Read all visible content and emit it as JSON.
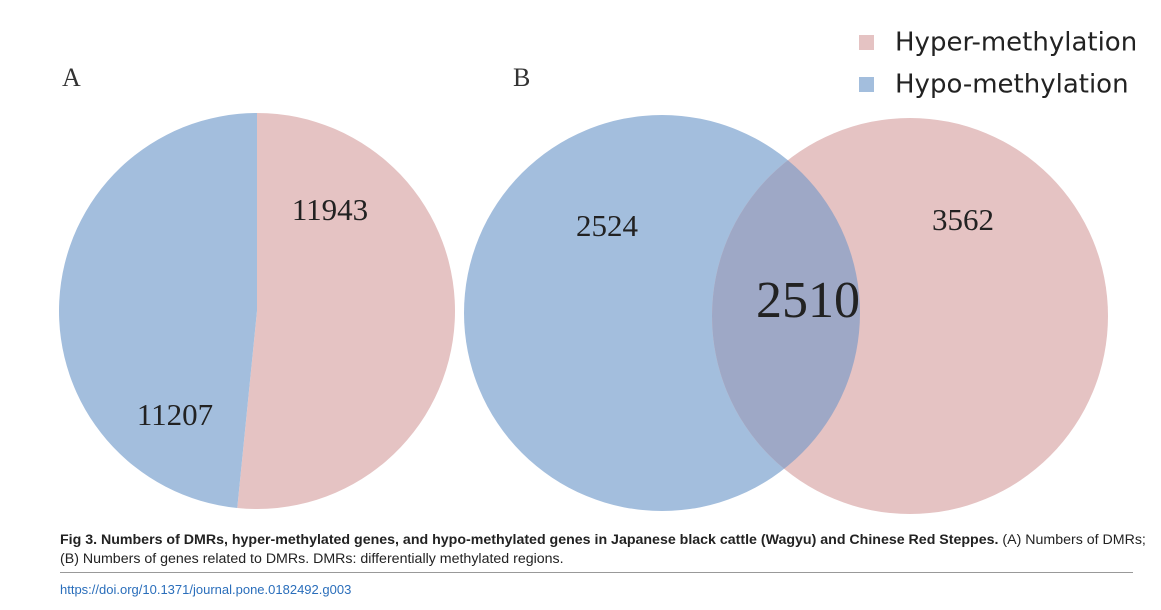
{
  "chart_data": [
    {
      "type": "pie",
      "panel": "A",
      "values": [
        11943,
        11207
      ],
      "colors": [
        "#e5c3c3",
        "#a3bedd"
      ]
    },
    {
      "type": "venn",
      "panel": "B",
      "series": [
        {
          "name": "Hyper-methylation",
          "color": "#e5c3c3"
        },
        {
          "name": "Hypo-methylation",
          "color": "#a3bedd"
        }
      ],
      "overlap_color": "#9ea8c6",
      "regions": {
        "hypo_only": 2524,
        "both": 2510,
        "hyper_only": 3562
      }
    }
  ],
  "caption": {
    "title": "Fig 3. Numbers of DMRs, hyper-methylated genes, and hypo-methylated genes in Japanese black cattle (Wagyu) and Chinese Red Steppes.",
    "text": "(A) Numbers of DMRs; (B) Numbers of genes related to DMRs. DMRs: differentially methylated regions."
  },
  "doi": "https://doi.org/10.1371/journal.pone.0182492.g003"
}
